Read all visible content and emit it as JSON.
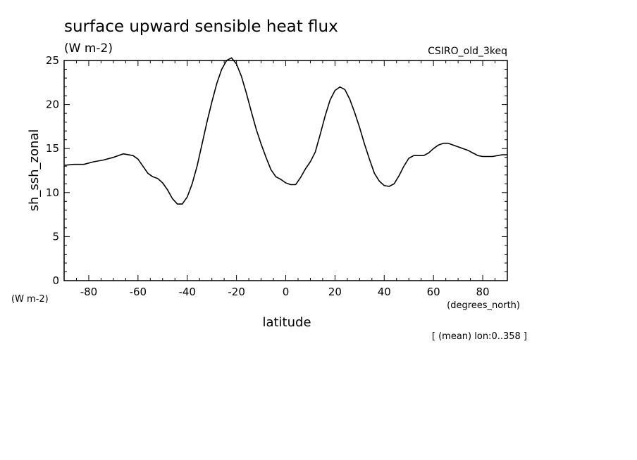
{
  "chart_data": {
    "type": "line",
    "title": "surface upward sensible heat flux",
    "subtitle_units": "(W m-2)",
    "model_label": "CSIRO_old_3keq",
    "xlabel": "latitude",
    "x_units": "(degrees_north)",
    "ylabel": "sh_ssh_zonal",
    "y_units": "(W m-2)",
    "footnote": "[ (mean) lon:0..358 ]",
    "xlim": [
      -90,
      90
    ],
    "ylim": [
      0,
      25
    ],
    "x_ticks": [
      -80,
      -60,
      -40,
      -20,
      0,
      20,
      40,
      60,
      80
    ],
    "x_tick_labels": [
      "-80",
      "-60",
      "-40",
      "-20",
      "0",
      "20",
      "40",
      "60",
      "80"
    ],
    "y_ticks": [
      0,
      5,
      10,
      15,
      20,
      25
    ],
    "y_tick_labels": [
      "0",
      "5",
      "10",
      "15",
      "20",
      "25"
    ],
    "grid": false,
    "series": [
      {
        "color": "#000000",
        "x": [
          -90,
          -86,
          -82,
          -78,
          -74,
          -70,
          -68,
          -66,
          -62,
          -60,
          -58,
          -56,
          -54,
          -52,
          -50,
          -48,
          -46,
          -44,
          -42,
          -40,
          -38,
          -36,
          -34,
          -32,
          -30,
          -28,
          -26,
          -24,
          -22,
          -20,
          -18,
          -16,
          -14,
          -12,
          -10,
          -8,
          -6,
          -4,
          -2,
          0,
          2,
          4,
          6,
          8,
          10,
          12,
          14,
          16,
          18,
          20,
          22,
          24,
          26,
          28,
          30,
          32,
          34,
          36,
          38,
          40,
          42,
          44,
          46,
          48,
          50,
          52,
          54,
          56,
          58,
          60,
          62,
          64,
          66,
          68,
          70,
          72,
          74,
          76,
          78,
          80,
          82,
          84,
          86,
          88,
          90
        ],
        "y": [
          13.1,
          13.2,
          13.2,
          13.5,
          13.7,
          14.0,
          14.2,
          14.4,
          14.2,
          13.8,
          13.0,
          12.2,
          11.8,
          11.6,
          11.1,
          10.3,
          9.3,
          8.7,
          8.7,
          9.5,
          11.0,
          13.0,
          15.5,
          18.0,
          20.3,
          22.4,
          24.0,
          25.0,
          25.3,
          24.6,
          23.2,
          21.3,
          19.2,
          17.2,
          15.5,
          14.0,
          12.6,
          11.8,
          11.5,
          11.1,
          10.9,
          10.9,
          11.7,
          12.7,
          13.5,
          14.6,
          16.6,
          18.7,
          20.5,
          21.6,
          22.0,
          21.7,
          20.6,
          19.1,
          17.4,
          15.5,
          13.8,
          12.2,
          11.3,
          10.8,
          10.7,
          11.0,
          11.9,
          13.0,
          13.9,
          14.2,
          14.2,
          14.2,
          14.5,
          15.0,
          15.4,
          15.6,
          15.6,
          15.4,
          15.2,
          15.0,
          14.8,
          14.5,
          14.2,
          14.1,
          14.1,
          14.1,
          14.2,
          14.3,
          14.3
        ]
      }
    ]
  }
}
